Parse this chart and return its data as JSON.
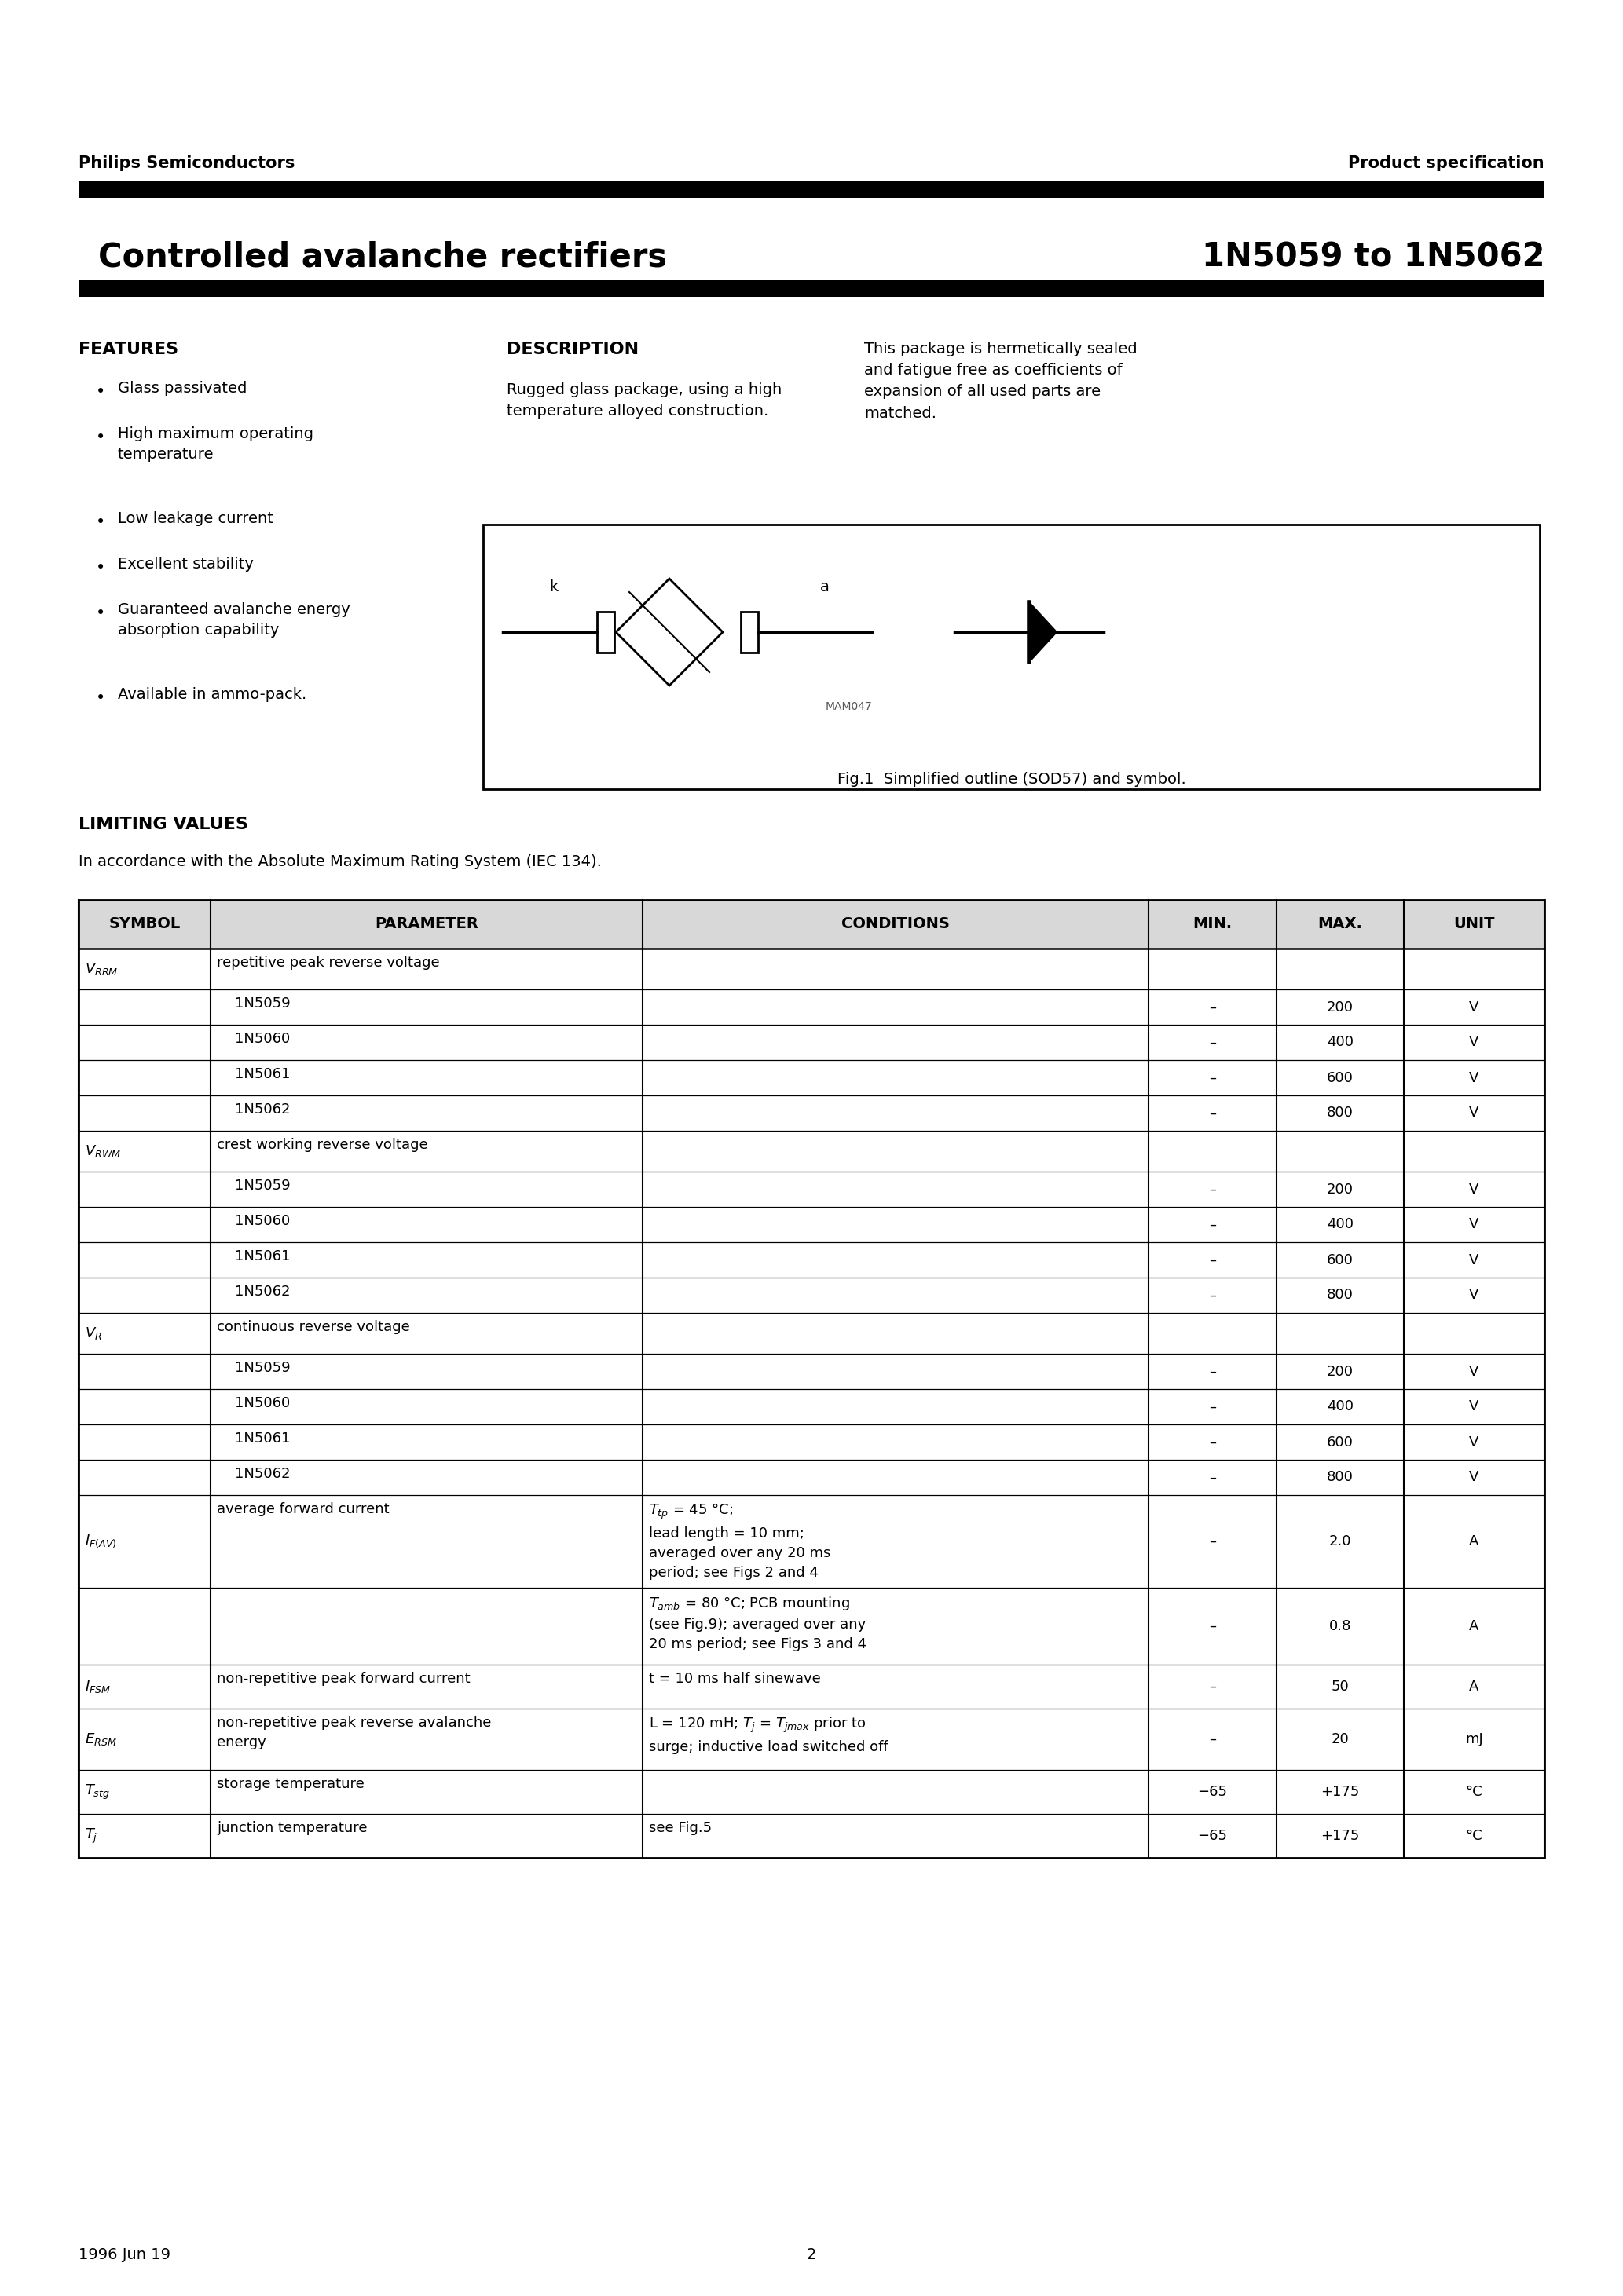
{
  "page_title_left": "Controlled avalanche rectifiers",
  "page_title_right": "1N5059 to 1N5062",
  "header_left": "Philips Semiconductors",
  "header_right": "Product specification",
  "footer_left": "1996 Jun 19",
  "footer_center": "2",
  "features_title": "FEATURES",
  "features_items": [
    "Glass passivated",
    "High maximum operating\ntemperature",
    "Low leakage current",
    "Excellent stability",
    "Guaranteed avalanche energy\nabsorption capability",
    "Available in ammo-pack."
  ],
  "description_title": "DESCRIPTION",
  "description_text": "Rugged glass package, using a high\ntemperature alloyed construction.",
  "description_right_text": "This package is hermetically sealed\nand fatigue free as coefficients of\nexpansion of all used parts are\nmatched.",
  "fig_caption": "Fig.1  Simplified outline (SOD57) and symbol.",
  "fig_label": "MAM047",
  "limiting_values_title": "LIMITING VALUES",
  "limiting_values_subtitle": "In accordance with the Absolute Maximum Rating System (IEC 134).",
  "table_headers": [
    "SYMBOL",
    "PARAMETER",
    "CONDITIONS",
    "MIN.",
    "MAX.",
    "UNIT"
  ],
  "background_color": "#ffffff",
  "text_color": "#000000"
}
